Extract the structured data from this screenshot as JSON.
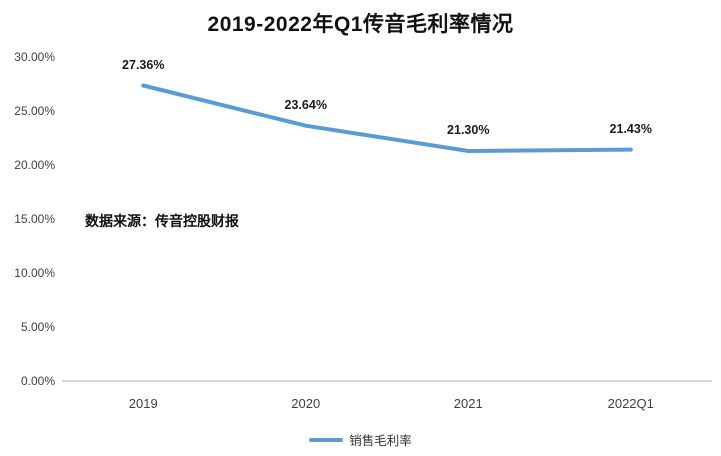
{
  "title": "2019-2022年Q1传音毛利率情况",
  "source_note": "数据来源：传音控股财报",
  "legend": {
    "label": "销售毛利率"
  },
  "colors": {
    "line": "#5B9BD5",
    "axis": "#BFBFBF",
    "text": "#1a1a1a"
  },
  "chart_data": {
    "type": "line",
    "title": "2019-2022年Q1传音毛利率情况",
    "categories": [
      "2019",
      "2020",
      "2021",
      "2022Q1"
    ],
    "series": [
      {
        "name": "销售毛利率",
        "values": [
          27.36,
          23.64,
          21.3,
          21.43
        ]
      }
    ],
    "data_labels": [
      "27.36%",
      "23.64%",
      "21.30%",
      "21.43%"
    ],
    "yticks": [
      "30.00%",
      "25.00%",
      "20.00%",
      "15.00%",
      "10.00%",
      "5.00%",
      "0.00%"
    ],
    "ytick_values": [
      30,
      25,
      20,
      15,
      10,
      5,
      0
    ],
    "ylim": [
      0,
      30
    ],
    "xlabel": "",
    "ylabel": "",
    "grid": false,
    "legend_position": "bottom",
    "annotation": "数据来源：传音控股财报"
  }
}
